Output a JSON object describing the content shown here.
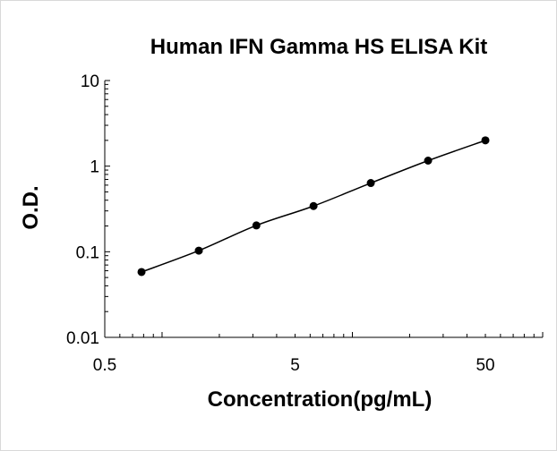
{
  "chart_data": {
    "type": "scatter",
    "title": "Human IFN Gamma HS ELISA Kit",
    "xlabel": "Concentration(pg/mL)",
    "ylabel": "O.D.",
    "xscale": "log",
    "yscale": "log",
    "xlim": [
      0.5,
      100
    ],
    "ylim": [
      0.01,
      10
    ],
    "xticks": [
      {
        "value": 0.5,
        "label": "0.5"
      },
      {
        "value": 5,
        "label": "5"
      },
      {
        "value": 50,
        "label": "50"
      }
    ],
    "yticks": [
      {
        "value": 0.01,
        "label": "0.01"
      },
      {
        "value": 0.1,
        "label": "0.1"
      },
      {
        "value": 1,
        "label": "1"
      },
      {
        "value": 10,
        "label": "10"
      }
    ],
    "grid": false,
    "legend": "none",
    "marker_color": "#000000",
    "line_color": "#000000",
    "series": [
      {
        "x": [
          0.78,
          1.56,
          3.13,
          6.25,
          12.5,
          25,
          50
        ],
        "y": [
          0.058,
          0.103,
          0.203,
          0.342,
          0.635,
          1.16,
          2.0
        ],
        "trendline": true
      }
    ]
  }
}
